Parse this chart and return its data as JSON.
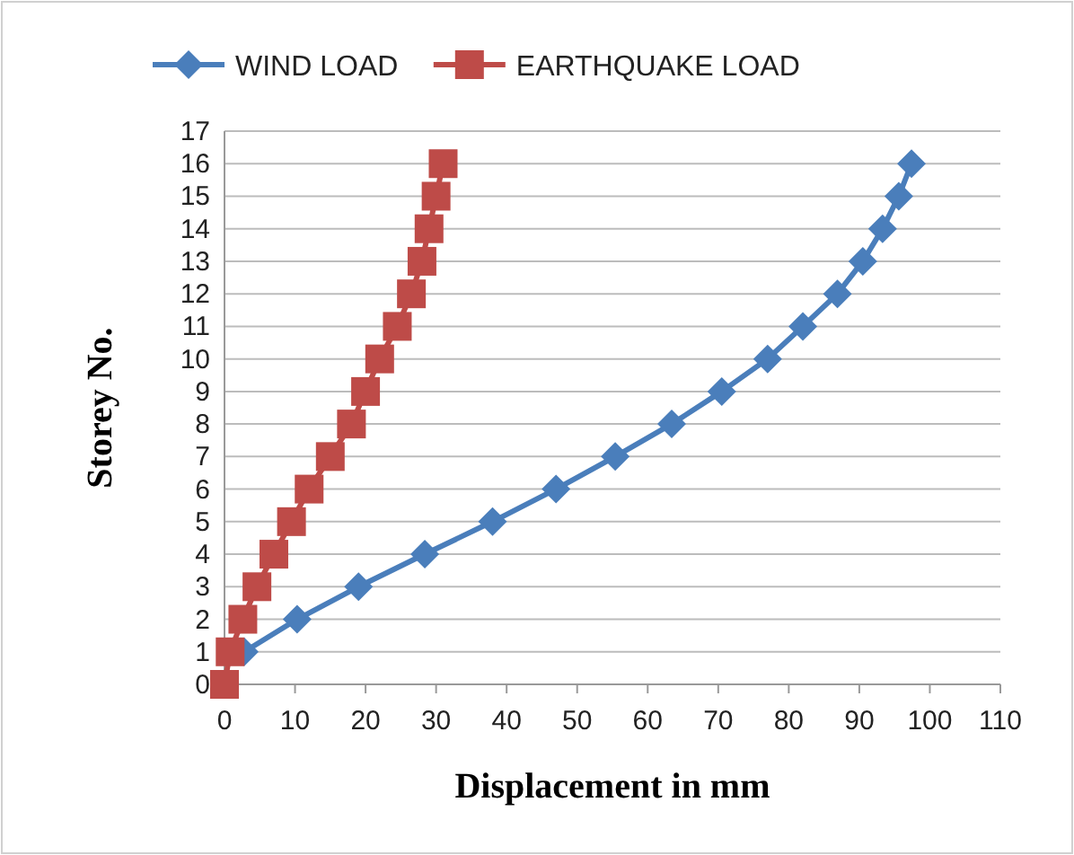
{
  "chart_data": {
    "type": "line",
    "xlabel": "Displacement in mm",
    "ylabel": "Storey No.",
    "xlim": [
      0,
      110
    ],
    "xticks": [
      0,
      10,
      20,
      30,
      40,
      50,
      60,
      70,
      80,
      90,
      100,
      110
    ],
    "ylim": [
      0,
      17
    ],
    "yticks": [
      0,
      1,
      2,
      3,
      4,
      5,
      6,
      7,
      8,
      9,
      10,
      11,
      12,
      13,
      14,
      15,
      16,
      17
    ],
    "grid": "y",
    "legend": "top",
    "series": [
      {
        "name": "WIND LOAD",
        "color": "#4a7ebb",
        "marker": "diamond",
        "x": [
          2.8,
          10.3,
          19,
          28.4,
          38,
          47,
          55.4,
          63.4,
          70.5,
          77,
          82,
          86.9,
          90.5,
          93.3,
          95.6,
          97.4
        ],
        "values": [
          1,
          2,
          3,
          4,
          5,
          6,
          7,
          8,
          9,
          10,
          11,
          12,
          13,
          14,
          15,
          16
        ]
      },
      {
        "name": "EARTHQUAKE LOAD",
        "color": "#be4b48",
        "marker": "square",
        "x": [
          0,
          0.8,
          2.6,
          4.6,
          7,
          9.5,
          12,
          15,
          18,
          20,
          22,
          24.5,
          26.5,
          28,
          29,
          30,
          31
        ],
        "values": [
          0,
          1,
          2,
          3,
          4,
          5,
          6,
          7,
          8,
          9,
          10,
          11,
          12,
          13,
          14,
          15,
          16
        ]
      }
    ]
  }
}
